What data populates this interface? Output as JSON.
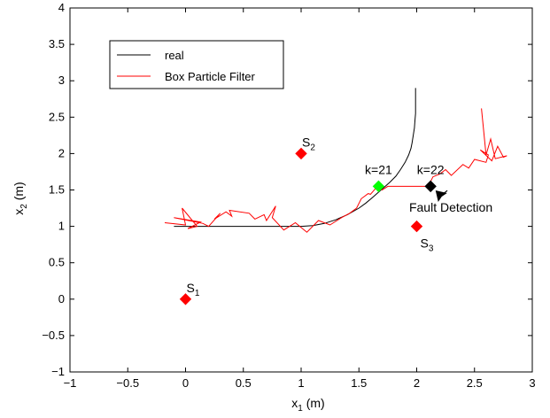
{
  "chart_data": {
    "type": "line",
    "xlabel": "x",
    "xlabel_sub": "1",
    "xlabel_unit": " (m)",
    "ylabel": "x",
    "ylabel_sub": "2",
    "ylabel_unit": " (m)",
    "xlim": [
      -1,
      3
    ],
    "ylim": [
      -1,
      4
    ],
    "xticks": [
      -1,
      -0.5,
      0,
      0.5,
      1,
      1.5,
      2,
      2.5,
      3
    ],
    "xtick_labels": [
      "−1",
      "−0.5",
      "0",
      "0.5",
      "1",
      "1.5",
      "2",
      "2.5",
      "3"
    ],
    "yticks": [
      -1,
      -0.5,
      0,
      0.5,
      1,
      1.5,
      2,
      2.5,
      3,
      3.5,
      4
    ],
    "ytick_labels": [
      "−1",
      "−0.5",
      "0",
      "0.5",
      "1",
      "1.5",
      "2",
      "2.5",
      "3",
      "3.5",
      "4"
    ],
    "grid": false,
    "legend_position": "top-left",
    "series": [
      {
        "name": "real",
        "color": "#000000",
        "x": [
          -0.1,
          1.0,
          1.1,
          1.2,
          1.3,
          1.4,
          1.5,
          1.56,
          1.62,
          1.67,
          1.72,
          1.77,
          1.82,
          1.86,
          1.9,
          1.93,
          1.95,
          1.96,
          1.97,
          1.98,
          1.985,
          1.99,
          1.99,
          1.99,
          1.99
        ],
        "y": [
          1.0,
          1.0,
          1.01,
          1.04,
          1.09,
          1.16,
          1.25,
          1.32,
          1.4,
          1.47,
          1.54,
          1.61,
          1.69,
          1.78,
          1.88,
          1.98,
          2.07,
          2.15,
          2.25,
          2.35,
          2.45,
          2.55,
          2.65,
          2.75,
          2.9
        ]
      },
      {
        "name": "Box Particle Filter",
        "color": "#ff0000",
        "x": [
          -0.18,
          0.0,
          -0.03,
          0.1,
          0.02,
          0.13,
          -0.1,
          0.15,
          0.2,
          0.3,
          0.25,
          0.35,
          0.4,
          0.38,
          0.55,
          0.6,
          0.68,
          0.7,
          0.78,
          0.75,
          0.85,
          0.95,
          1.05,
          1.15,
          1.25,
          1.35,
          1.42,
          1.48,
          1.52,
          1.58,
          1.6,
          1.66,
          1.7,
          1.75,
          1.8,
          2.1,
          2.14,
          2.2,
          2.25,
          2.3,
          2.4,
          2.45,
          2.5,
          2.6,
          2.62,
          2.55,
          2.65,
          2.7,
          2.75,
          2.78,
          2.68,
          2.64,
          2.6,
          2.58,
          2.56
        ],
        "y": [
          1.05,
          1.02,
          1.25,
          1.0,
          0.97,
          1.06,
          1.12,
          1.04,
          1.0,
          1.18,
          1.1,
          1.2,
          1.14,
          1.22,
          1.18,
          1.1,
          1.16,
          1.08,
          1.28,
          1.12,
          0.95,
          1.05,
          0.92,
          1.08,
          1.02,
          1.12,
          1.18,
          1.25,
          1.38,
          1.45,
          1.44,
          1.55,
          1.5,
          1.55,
          1.55,
          1.55,
          1.68,
          1.72,
          1.78,
          1.7,
          1.85,
          1.8,
          1.92,
          1.88,
          1.98,
          2.05,
          1.9,
          2.1,
          1.95,
          1.97,
          1.93,
          2.2,
          1.98,
          2.3,
          2.62
        ]
      }
    ],
    "sensors": [
      {
        "label": "S",
        "sub": "1",
        "x": 0,
        "y": 0
      },
      {
        "label": "S",
        "sub": "2",
        "x": 1,
        "y": 2
      },
      {
        "label": "S",
        "sub": "3",
        "x": 2,
        "y": 1
      }
    ],
    "sensor_color": "#ff0000",
    "events": [
      {
        "label": "k=21",
        "x": 1.67,
        "y": 1.55,
        "color": "#00ff00"
      },
      {
        "label": "k=22",
        "x": 2.12,
        "y": 1.55,
        "color": "#000000"
      }
    ],
    "annotation": {
      "text": "Fault Detection",
      "x": 2.28,
      "y": 1.37,
      "arrow_to_x": 2.14,
      "arrow_to_y": 1.53
    }
  }
}
